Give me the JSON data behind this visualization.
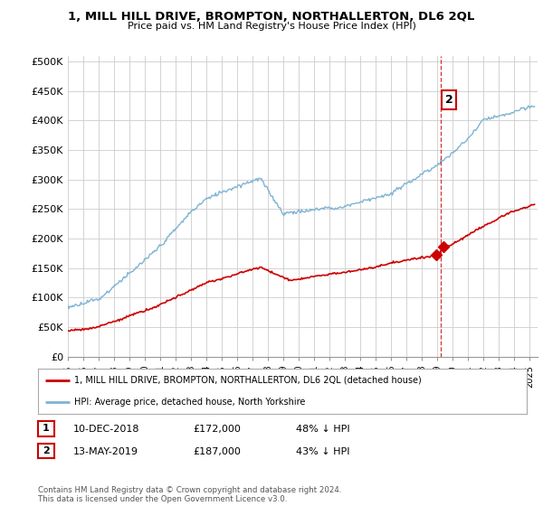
{
  "title": "1, MILL HILL DRIVE, BROMPTON, NORTHALLERTON, DL6 2QL",
  "subtitle": "Price paid vs. HM Land Registry's House Price Index (HPI)",
  "ylabel_ticks": [
    "£0",
    "£50K",
    "£100K",
    "£150K",
    "£200K",
    "£250K",
    "£300K",
    "£350K",
    "£400K",
    "£450K",
    "£500K"
  ],
  "ytick_values": [
    0,
    50000,
    100000,
    150000,
    200000,
    250000,
    300000,
    350000,
    400000,
    450000,
    500000
  ],
  "ylim": [
    0,
    510000
  ],
  "sale1": {
    "date_num": 2018.94,
    "price": 172000,
    "label": "1",
    "date_str": "10-DEC-2018",
    "price_str": "£172,000",
    "pct": "48% ↓ HPI"
  },
  "sale2": {
    "date_num": 2019.37,
    "price": 187000,
    "label": "2",
    "date_str": "13-MAY-2019",
    "price_str": "£187,000",
    "pct": "43% ↓ HPI"
  },
  "legend_label_red": "1, MILL HILL DRIVE, BROMPTON, NORTHALLERTON, DL6 2QL (detached house)",
  "legend_label_blue": "HPI: Average price, detached house, North Yorkshire",
  "footer": "Contains HM Land Registry data © Crown copyright and database right 2024.\nThis data is licensed under the Open Government Licence v3.0.",
  "red_color": "#cc0000",
  "blue_color": "#7fb3d3",
  "vline_color": "#cc0000",
  "background_color": "#ffffff",
  "grid_color": "#cccccc",
  "annotation_box_color": "#cc0000"
}
